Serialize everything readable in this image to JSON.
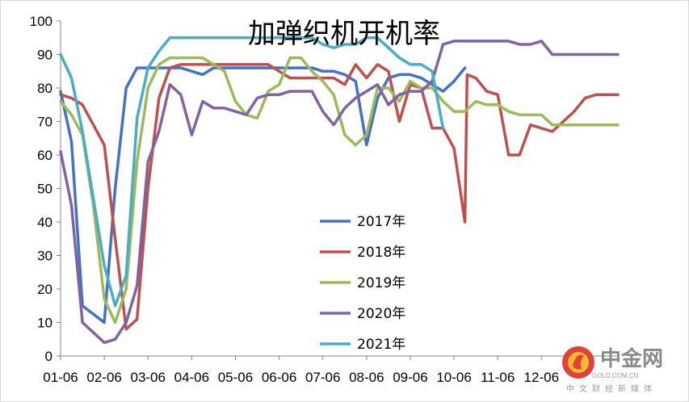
{
  "chart_data": {
    "type": "line",
    "title": "加弹织机开机率",
    "xlabel": "",
    "ylabel": "",
    "ylim": [
      0,
      100
    ],
    "yticks": [
      0,
      10,
      20,
      30,
      40,
      50,
      60,
      70,
      80,
      90,
      100
    ],
    "x_range": [
      1,
      52
    ],
    "x_ticks": [
      {
        "x": 1,
        "label": "01-06"
      },
      {
        "x": 5,
        "label": "02-06"
      },
      {
        "x": 9,
        "label": "03-06"
      },
      {
        "x": 13,
        "label": "04-06"
      },
      {
        "x": 17,
        "label": "05-06"
      },
      {
        "x": 21,
        "label": "06-06"
      },
      {
        "x": 25,
        "label": "07-06"
      },
      {
        "x": 29,
        "label": "08-06"
      },
      {
        "x": 33,
        "label": "09-06"
      },
      {
        "x": 37,
        "label": "10-06"
      },
      {
        "x": 41,
        "label": "11-06"
      },
      {
        "x": 45,
        "label": "12-06"
      }
    ],
    "grid": false,
    "legend_position": "center",
    "series": [
      {
        "name": "2017年",
        "color": "#4472c4",
        "points": [
          [
            1,
            79
          ],
          [
            2,
            64
          ],
          [
            3,
            15
          ],
          [
            5,
            10
          ],
          [
            6,
            50
          ],
          [
            7,
            80
          ],
          [
            8,
            86
          ],
          [
            9,
            86
          ],
          [
            10,
            86
          ],
          [
            11,
            86
          ],
          [
            12,
            86
          ],
          [
            13,
            85
          ],
          [
            14,
            84
          ],
          [
            15,
            86
          ],
          [
            16,
            86
          ],
          [
            17,
            86
          ],
          [
            18,
            86
          ],
          [
            19,
            86
          ],
          [
            20,
            86
          ],
          [
            21,
            86
          ],
          [
            22,
            86
          ],
          [
            23,
            86
          ],
          [
            24,
            86
          ],
          [
            25,
            85
          ],
          [
            26,
            85
          ],
          [
            27,
            84
          ],
          [
            28,
            82
          ],
          [
            29,
            63
          ],
          [
            30,
            77
          ],
          [
            31,
            83
          ],
          [
            32,
            84
          ],
          [
            33,
            84
          ],
          [
            34,
            83
          ],
          [
            35,
            81
          ],
          [
            36,
            79
          ],
          [
            37,
            82
          ],
          [
            38,
            86
          ]
        ]
      },
      {
        "name": "2018年",
        "color": "#c0504d",
        "points": [
          [
            1,
            78
          ],
          [
            2,
            77
          ],
          [
            3,
            75
          ],
          [
            5,
            63
          ],
          [
            6,
            35
          ],
          [
            7,
            8
          ],
          [
            8,
            11
          ],
          [
            9,
            50
          ],
          [
            10,
            77
          ],
          [
            11,
            86
          ],
          [
            12,
            87
          ],
          [
            13,
            87
          ],
          [
            14,
            87
          ],
          [
            15,
            87
          ],
          [
            16,
            87
          ],
          [
            17,
            87
          ],
          [
            18,
            87
          ],
          [
            19,
            87
          ],
          [
            20,
            87
          ],
          [
            21,
            85
          ],
          [
            22,
            83
          ],
          [
            23,
            83
          ],
          [
            24,
            83
          ],
          [
            25,
            83
          ],
          [
            26,
            83
          ],
          [
            27,
            81
          ],
          [
            28,
            87
          ],
          [
            29,
            83
          ],
          [
            30,
            87
          ],
          [
            31,
            85
          ],
          [
            32,
            70
          ],
          [
            33,
            81
          ],
          [
            34,
            80
          ],
          [
            35,
            68
          ],
          [
            36,
            68
          ],
          [
            37,
            62
          ],
          [
            38,
            40
          ],
          [
            38.2,
            84
          ],
          [
            39,
            83
          ],
          [
            40,
            79
          ],
          [
            41,
            78
          ],
          [
            42,
            60
          ],
          [
            43,
            60
          ],
          [
            44,
            69
          ],
          [
            45,
            68
          ],
          [
            46,
            67
          ],
          [
            47,
            70
          ],
          [
            48,
            73
          ],
          [
            49,
            77
          ],
          [
            50,
            78
          ],
          [
            52,
            78
          ]
        ]
      },
      {
        "name": "2019年",
        "color": "#9bbb59",
        "points": [
          [
            1,
            76
          ],
          [
            2,
            72
          ],
          [
            3,
            66
          ],
          [
            4,
            45
          ],
          [
            5,
            17
          ],
          [
            6,
            10
          ],
          [
            7,
            20
          ],
          [
            8,
            58
          ],
          [
            9,
            80
          ],
          [
            10,
            87
          ],
          [
            11,
            89
          ],
          [
            12,
            89
          ],
          [
            13,
            89
          ],
          [
            14,
            89
          ],
          [
            15,
            87
          ],
          [
            16,
            85
          ],
          [
            17,
            76
          ],
          [
            18,
            72
          ],
          [
            19,
            71
          ],
          [
            20,
            79
          ],
          [
            21,
            81
          ],
          [
            22,
            89
          ],
          [
            23,
            89
          ],
          [
            24,
            85
          ],
          [
            25,
            82
          ],
          [
            26,
            78
          ],
          [
            27,
            66
          ],
          [
            28,
            63
          ],
          [
            29,
            66
          ],
          [
            30,
            80
          ],
          [
            31,
            80
          ],
          [
            32,
            76
          ],
          [
            33,
            82
          ],
          [
            34,
            80
          ],
          [
            35,
            80
          ],
          [
            36,
            76
          ],
          [
            37,
            73
          ],
          [
            38,
            73
          ],
          [
            39,
            76
          ],
          [
            40,
            75
          ],
          [
            41,
            75
          ],
          [
            42,
            73
          ],
          [
            43,
            72
          ],
          [
            44,
            72
          ],
          [
            45,
            72
          ],
          [
            46,
            69
          ],
          [
            47,
            69
          ],
          [
            48,
            69
          ],
          [
            52,
            69
          ]
        ]
      },
      {
        "name": "2020年",
        "color": "#8064a2",
        "points": [
          [
            1,
            61
          ],
          [
            2,
            45
          ],
          [
            3,
            10
          ],
          [
            5,
            4
          ],
          [
            6,
            5
          ],
          [
            7,
            10
          ],
          [
            8,
            21
          ],
          [
            9,
            58
          ],
          [
            10,
            67
          ],
          [
            11,
            81
          ],
          [
            12,
            78
          ],
          [
            13,
            66
          ],
          [
            14,
            76
          ],
          [
            15,
            74
          ],
          [
            16,
            74
          ],
          [
            17,
            73
          ],
          [
            18,
            72
          ],
          [
            19,
            77
          ],
          [
            20,
            78
          ],
          [
            21,
            78
          ],
          [
            22,
            79
          ],
          [
            23,
            79
          ],
          [
            24,
            79
          ],
          [
            25,
            73
          ],
          [
            26,
            69
          ],
          [
            27,
            74
          ],
          [
            28,
            77
          ],
          [
            29,
            79
          ],
          [
            30,
            81
          ],
          [
            31,
            75
          ],
          [
            32,
            78
          ],
          [
            33,
            79
          ],
          [
            34,
            79
          ],
          [
            35,
            82
          ],
          [
            36,
            93
          ],
          [
            37,
            94
          ],
          [
            38,
            94
          ],
          [
            39,
            94
          ],
          [
            40,
            94
          ],
          [
            41,
            94
          ],
          [
            42,
            94
          ],
          [
            43,
            93
          ],
          [
            44,
            93
          ],
          [
            45,
            94
          ],
          [
            46,
            90
          ],
          [
            47,
            90
          ],
          [
            52,
            90
          ]
        ]
      },
      {
        "name": "2021年",
        "color": "#4bacc6",
        "points": [
          [
            1,
            90
          ],
          [
            2,
            83
          ],
          [
            3,
            67
          ],
          [
            4,
            47
          ],
          [
            5,
            27
          ],
          [
            6,
            15
          ],
          [
            7,
            24
          ],
          [
            8,
            71
          ],
          [
            9,
            86
          ],
          [
            10,
            91
          ],
          [
            11,
            95
          ],
          [
            12,
            95
          ],
          [
            13,
            95
          ],
          [
            14,
            95
          ],
          [
            15,
            95
          ],
          [
            16,
            95
          ],
          [
            17,
            95
          ],
          [
            18,
            95
          ],
          [
            19,
            95
          ],
          [
            20,
            95
          ],
          [
            21,
            95
          ],
          [
            22,
            95
          ],
          [
            23,
            95
          ],
          [
            24,
            95
          ],
          [
            25,
            93
          ],
          [
            26,
            92
          ],
          [
            27,
            93
          ],
          [
            28,
            93
          ],
          [
            29,
            95
          ],
          [
            30,
            95
          ],
          [
            31,
            92
          ],
          [
            32,
            89
          ],
          [
            33,
            87
          ],
          [
            34,
            87
          ],
          [
            35,
            85
          ],
          [
            36,
            68
          ]
        ]
      }
    ]
  },
  "watermark": {
    "brand": "中金网",
    "domain": "GOLD.COM.CN",
    "tagline": "中文财经新媒体"
  }
}
